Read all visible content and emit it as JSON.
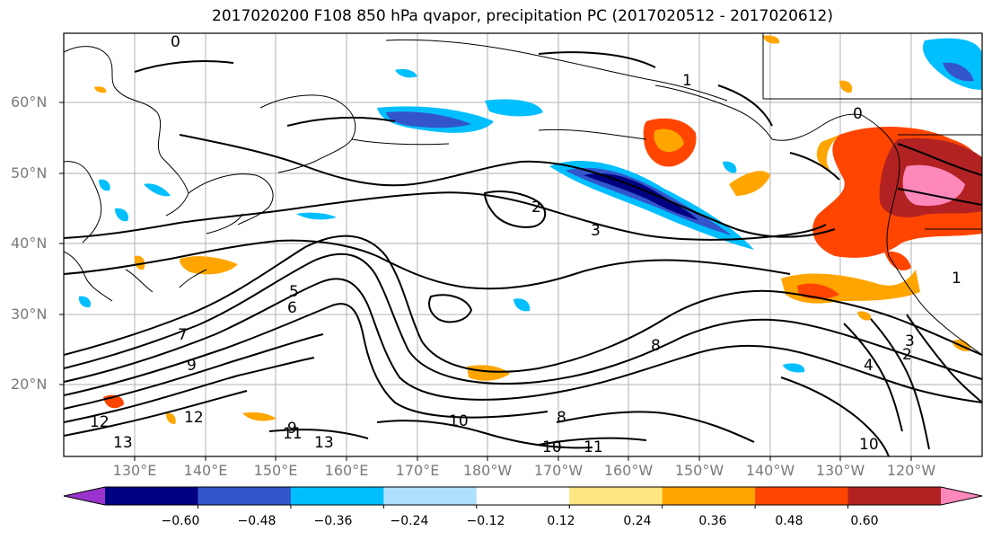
{
  "title": "2017020200 F108 850 hPa qvapor, precipitation PC (2017020512 - 2017020612)",
  "lat_labels": [
    "60°N",
    "50°N",
    "40°N",
    "30°N",
    "20°N"
  ],
  "lon_labels": [
    "130°E",
    "140°E",
    "150°E",
    "160°E",
    "170°E",
    "180°W",
    "170°W",
    "160°W",
    "150°W",
    "140°W",
    "130°W",
    "120°W"
  ],
  "colorbar": {
    "tick_labels": [
      "−0.60",
      "−0.48",
      "−0.36",
      "−0.24",
      "−0.12",
      "0.12",
      "0.24",
      "0.36",
      "0.48",
      "0.60"
    ],
    "colors": [
      "#9933cc",
      "#000080",
      "#3355cc",
      "#00bfff",
      "#b0e0ff",
      "#ffffff",
      "#ffe680",
      "#ffa500",
      "#ff4500",
      "#b22222",
      "#ff88bb"
    ]
  },
  "contour_labels": [
    "0",
    "1",
    "2",
    "3",
    "5",
    "6",
    "7",
    "8",
    "9",
    "10",
    "11",
    "12",
    "13",
    "10",
    "11",
    "10",
    "4",
    "2",
    "3",
    "1",
    "0",
    "8",
    "9",
    "13",
    "12"
  ],
  "legend": {
    "contours": "850 hPa qvapor",
    "shading": "precipitation PC"
  }
}
